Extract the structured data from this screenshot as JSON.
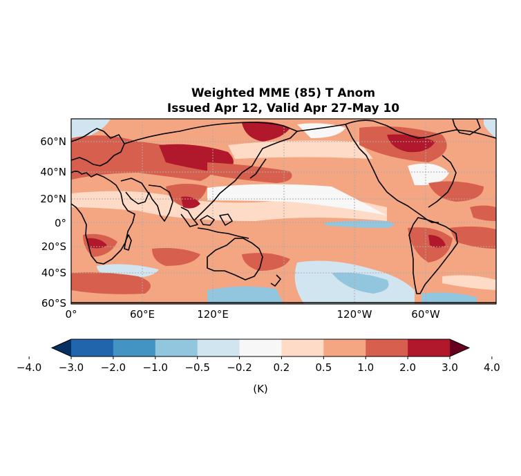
{
  "title_line1": "Weighted MME (85) T Anom",
  "title_line2": "Issued Apr 12, Valid Apr 27-May 10",
  "map": {
    "lat_labels": [
      "60°N",
      "40°N",
      "20°N",
      "0°",
      "20°S",
      "40°S",
      "60°S"
    ],
    "lon_labels": [
      "0°",
      "60°E",
      "120°E",
      "120°W",
      "60°W"
    ],
    "extent": {
      "lon_min": 0,
      "lon_max": 360,
      "lat_min": -60,
      "lat_max": 85
    },
    "gridlines": true,
    "colorbar_label": "(K)",
    "colorbar_ticks": [
      "−4.0",
      "−3.0",
      "−2.0",
      "−1.0",
      "−0.5",
      "−0.2",
      "0.2",
      "0.5",
      "1.0",
      "2.0",
      "3.0",
      "4.0"
    ],
    "colorbar_colors": [
      "#053061",
      "#2166ac",
      "#4393c3",
      "#92c5de",
      "#d1e5f0",
      "#f7f7f7",
      "#fddbc7",
      "#f4a582",
      "#d6604d",
      "#b2182b",
      "#67001f"
    ]
  }
}
